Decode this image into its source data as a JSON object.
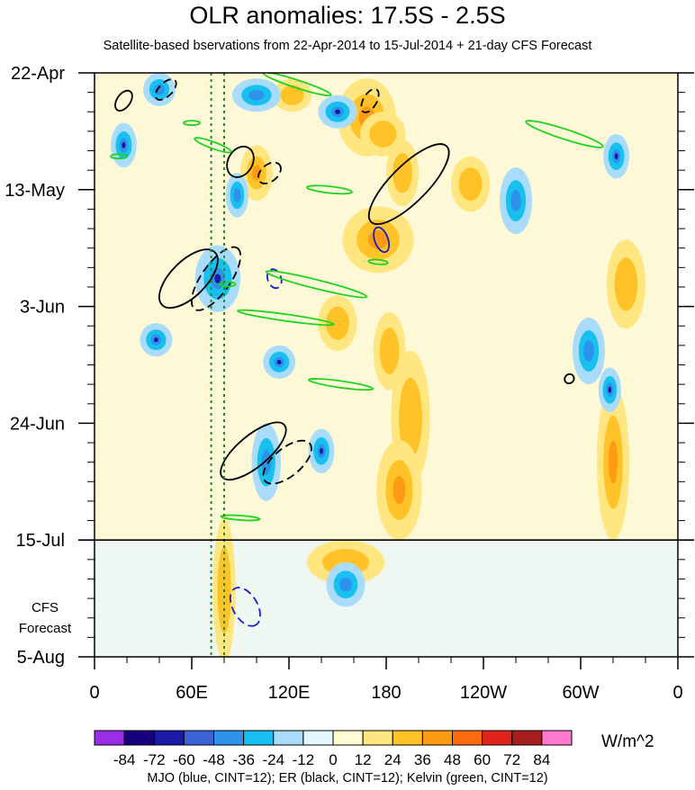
{
  "chart_data": {
    "type": "heatmap",
    "title": "OLR anomalies: 17.5S - 2.5S",
    "subtitle": "Satellite-based bservations from 22-Apr-2014 to 15-Jul-2014 + 21-day CFS Forecast",
    "x_ticks": [
      "0",
      "60E",
      "120E",
      "180",
      "120W",
      "60W",
      "0"
    ],
    "x_tick_degrees_east": [
      0,
      60,
      120,
      180,
      240,
      300,
      360
    ],
    "y_ticks": [
      "22-Apr",
      "13-May",
      "3-Jun",
      "24-Jun",
      "15-Jul",
      "5-Aug"
    ],
    "y_tick_days": [
      0,
      21,
      42,
      63,
      84,
      105
    ],
    "y_axis_direction": "time increases downward",
    "observation_end": "15-Jul",
    "forecast_label": [
      "CFS",
      "Forecast"
    ],
    "reference_lines_degrees_east": [
      72,
      80
    ],
    "colorbar": {
      "labels": [
        "-84",
        "-72",
        "-60",
        "-48",
        "-36",
        "-24",
        "-12",
        "0",
        "12",
        "24",
        "36",
        "48",
        "60",
        "72",
        "84"
      ],
      "colors": [
        "#9a2ee6",
        "#16007e",
        "#1a1aa6",
        "#3a63d6",
        "#2d92ea",
        "#18c0f0",
        "#a8dcfa",
        "#e4f6fd",
        "#fffbd2",
        "#ffe680",
        "#ffc328",
        "#ff9a14",
        "#fd6a0e",
        "#e2231c",
        "#a61e1e",
        "#ff79cf"
      ],
      "units": "W/m^2"
    },
    "contour_legend": "MJO (blue, CINT=12); ER (black, CINT=12); Kelvin (green, CINT=12)",
    "contour_colors": {
      "MJO": "#1420c8",
      "ER": "#000000",
      "Kelvin": "#1ed21e"
    },
    "positive_anomaly_regions": [
      {
        "lon": 122,
        "day": 4,
        "rlon": 12,
        "rday": 3
      },
      {
        "lon": 168,
        "day": 8,
        "rlon": 18,
        "rday": 7
      },
      {
        "lon": 178,
        "day": 11,
        "rlon": 14,
        "rday": 4
      },
      {
        "lon": 190,
        "day": 18,
        "rlon": 10,
        "rday": 6
      },
      {
        "lon": 175,
        "day": 30,
        "rlon": 22,
        "rday": 6
      },
      {
        "lon": 182,
        "day": 50,
        "rlon": 10,
        "rday": 7
      },
      {
        "lon": 195,
        "day": 62,
        "rlon": 12,
        "rday": 12
      },
      {
        "lon": 188,
        "day": 75,
        "rlon": 14,
        "rday": 9
      },
      {
        "lon": 155,
        "day": 88,
        "rlon": 24,
        "rday": 4
      },
      {
        "lon": 80,
        "day": 93,
        "rlon": 7,
        "rday": 13
      },
      {
        "lon": 100,
        "day": 18,
        "rlon": 10,
        "rday": 5
      },
      {
        "lon": 232,
        "day": 20,
        "rlon": 12,
        "rday": 5
      },
      {
        "lon": 328,
        "day": 38,
        "rlon": 12,
        "rday": 8
      },
      {
        "lon": 320,
        "day": 70,
        "rlon": 10,
        "rday": 14
      },
      {
        "lon": 150,
        "day": 45,
        "rlon": 12,
        "rday": 5
      }
    ],
    "negative_anomaly_regions": [
      {
        "lon": 76,
        "day": 37,
        "rlon": 14,
        "rday": 6
      },
      {
        "lon": 100,
        "day": 4,
        "rlon": 15,
        "rday": 3
      },
      {
        "lon": 150,
        "day": 7,
        "rlon": 12,
        "rday": 3
      },
      {
        "lon": 40,
        "day": 3,
        "rlon": 10,
        "rday": 3
      },
      {
        "lon": 18,
        "day": 13,
        "rlon": 8,
        "rday": 4
      },
      {
        "lon": 88,
        "day": 22,
        "rlon": 7,
        "rday": 4
      },
      {
        "lon": 114,
        "day": 52,
        "rlon": 10,
        "rday": 3
      },
      {
        "lon": 106,
        "day": 70,
        "rlon": 9,
        "rday": 7
      },
      {
        "lon": 140,
        "day": 68,
        "rlon": 8,
        "rday": 4
      },
      {
        "lon": 260,
        "day": 23,
        "rlon": 10,
        "rday": 6
      },
      {
        "lon": 322,
        "day": 15,
        "rlon": 8,
        "rday": 4
      },
      {
        "lon": 305,
        "day": 50,
        "rlon": 10,
        "rday": 6
      },
      {
        "lon": 318,
        "day": 57,
        "rlon": 7,
        "rday": 4
      },
      {
        "lon": 155,
        "day": 92,
        "rlon": 12,
        "rday": 4
      },
      {
        "lon": 38,
        "day": 48,
        "rlon": 10,
        "rday": 3
      }
    ],
    "er_contours": [
      {
        "lon": 18,
        "day": 5,
        "rlon": 7,
        "rday": 1.2,
        "angle": -55,
        "dashed": false
      },
      {
        "lon": 44,
        "day": 3,
        "rlon": 8,
        "rday": 1.2,
        "angle": -45,
        "dashed": true
      },
      {
        "lon": 90,
        "day": 16,
        "rlon": 10,
        "rday": 2.2,
        "angle": -60,
        "dashed": false
      },
      {
        "lon": 108,
        "day": 18,
        "rlon": 8,
        "rday": 1.5,
        "angle": -40,
        "dashed": true
      },
      {
        "lon": 170,
        "day": 5,
        "rlon": 8,
        "rday": 1.2,
        "angle": -60,
        "dashed": true
      },
      {
        "lon": 194,
        "day": 20,
        "rlon": 33,
        "rday": 3.3,
        "angle": -45,
        "dashed": false
      },
      {
        "lon": 58,
        "day": 37,
        "rlon": 23,
        "rday": 3.2,
        "angle": -45,
        "dashed": false
      },
      {
        "lon": 75,
        "day": 37,
        "rlon": 23,
        "rday": 2.6,
        "angle": -55,
        "dashed": true
      },
      {
        "lon": 98,
        "day": 68,
        "rlon": 25,
        "rday": 2.8,
        "angle": -40,
        "dashed": false
      },
      {
        "lon": 119,
        "day": 70,
        "rlon": 18,
        "rday": 2.5,
        "angle": -40,
        "dashed": true
      },
      {
        "lon": 293,
        "day": 55,
        "rlon": 3,
        "rday": 0.8,
        "angle": -45,
        "dashed": false
      }
    ],
    "mjo_contours": [
      {
        "lon": 177,
        "day": 30,
        "rlon": 8,
        "rday": 1.2,
        "angle": 70,
        "dashed": false
      },
      {
        "lon": 111,
        "day": 37,
        "rlon": 6,
        "rday": 1.2,
        "angle": 70,
        "dashed": true
      },
      {
        "lon": 93,
        "day": 96,
        "rlon": 13,
        "rday": 2.2,
        "angle": 60,
        "dashed": true
      }
    ],
    "kelvin_contours": [
      {
        "lon": 125,
        "day": 2,
        "rlon": 22,
        "rday": 0.7,
        "angle": 18
      },
      {
        "lon": 290,
        "day": 11,
        "rlon": 25,
        "rday": 0.9,
        "angle": 18
      },
      {
        "lon": 73,
        "day": 13,
        "rlon": 12,
        "rday": 0.6,
        "angle": 20
      },
      {
        "lon": 145,
        "day": 21,
        "rlon": 14,
        "rday": 0.6,
        "angle": 6
      },
      {
        "lon": 137,
        "day": 38,
        "rlon": 32,
        "rday": 0.8,
        "angle": 14
      },
      {
        "lon": 118,
        "day": 44,
        "rlon": 30,
        "rday": 0.6,
        "angle": 8
      },
      {
        "lon": 152,
        "day": 56,
        "rlon": 20,
        "rday": 0.6,
        "angle": 8
      },
      {
        "lon": 175,
        "day": 34,
        "rlon": 6,
        "rday": 0.4,
        "angle": 5
      },
      {
        "lon": 90,
        "day": 80,
        "rlon": 12,
        "rday": 0.4,
        "angle": 4
      },
      {
        "lon": 82,
        "day": 38,
        "rlon": 5,
        "rday": 0.4,
        "angle": 0
      },
      {
        "lon": 15,
        "day": 15,
        "rlon": 5,
        "rday": 0.4,
        "angle": 0
      },
      {
        "lon": 60,
        "day": 9,
        "rlon": 5,
        "rday": 0.4,
        "angle": 0
      }
    ]
  }
}
